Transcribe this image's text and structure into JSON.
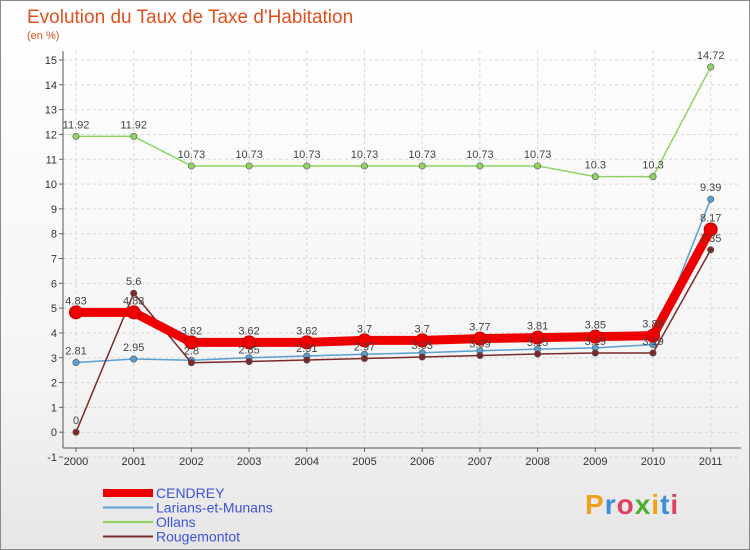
{
  "header": {
    "title": "Evolution du Taux de Taxe d'Habitation",
    "subtitle": "(en %)"
  },
  "brand": {
    "letters": [
      "P",
      "r",
      "o",
      "x",
      "i",
      "t",
      "i"
    ],
    "colors": [
      "#f0a020",
      "#3b8fd8",
      "#e04060",
      "#4caf30",
      "#f0a020",
      "#3b8fd8",
      "#e04060"
    ]
  },
  "chart_data": {
    "type": "line",
    "title": "Evolution du Taux de Taxe d'Habitation",
    "ylabel": "(en %)",
    "x": [
      "2000",
      "2001",
      "2002",
      "2003",
      "2004",
      "2005",
      "2006",
      "2007",
      "2008",
      "2009",
      "2010",
      "2011"
    ],
    "ylim": [
      -1,
      15
    ],
    "yticks": [
      "-1",
      "0",
      "1",
      "2",
      "3",
      "4",
      "5",
      "6",
      "7",
      "8",
      "9",
      "10",
      "11",
      "12",
      "13",
      "14",
      "15"
    ],
    "grid": true,
    "legend_position": "bottom-left",
    "series": [
      {
        "name": "CENDREY",
        "color": "#ee0000",
        "values": [
          4.83,
          4.83,
          3.62,
          3.62,
          3.62,
          3.7,
          3.7,
          3.77,
          3.81,
          3.85,
          3.89,
          8.17
        ],
        "labels": [
          "4.83",
          "4.83",
          "3.62",
          "3.62",
          "3.62",
          "3.7",
          "3.7",
          "3.77",
          "3.81",
          "3.85",
          "3.89",
          "8.17"
        ]
      },
      {
        "name": "Larians-et-Munans",
        "color": "#5a9fd4",
        "values": [
          2.81,
          2.95,
          2.9,
          3.0,
          3.07,
          3.14,
          3.2,
          3.28,
          3.35,
          3.4,
          3.53,
          9.39
        ],
        "labels": [
          "2.81",
          "2.95",
          "",
          "",
          "",
          "",
          "",
          "",
          "",
          "",
          "",
          "9.39"
        ]
      },
      {
        "name": "Ollans",
        "color": "#8fd460",
        "values": [
          11.92,
          11.92,
          10.73,
          10.73,
          10.73,
          10.73,
          10.73,
          10.73,
          10.73,
          10.3,
          10.3,
          14.72
        ],
        "labels": [
          "11.92",
          "11.92",
          "10.73",
          "10.73",
          "10.73",
          "10.73",
          "10.73",
          "10.73",
          "10.73",
          "10.3",
          "10.3",
          "14.72"
        ]
      },
      {
        "name": "Rougemontot",
        "color": "#7a2a2a",
        "values": [
          0,
          5.6,
          2.8,
          2.85,
          2.91,
          2.97,
          3.03,
          3.09,
          3.15,
          3.19,
          3.19,
          7.35
        ],
        "labels": [
          "0",
          "5.6",
          "2.8",
          "2.85",
          "2.91",
          "2.97",
          "3.03",
          "3.09",
          "3.15",
          "3.19",
          "3.19",
          "7.35"
        ]
      }
    ]
  }
}
